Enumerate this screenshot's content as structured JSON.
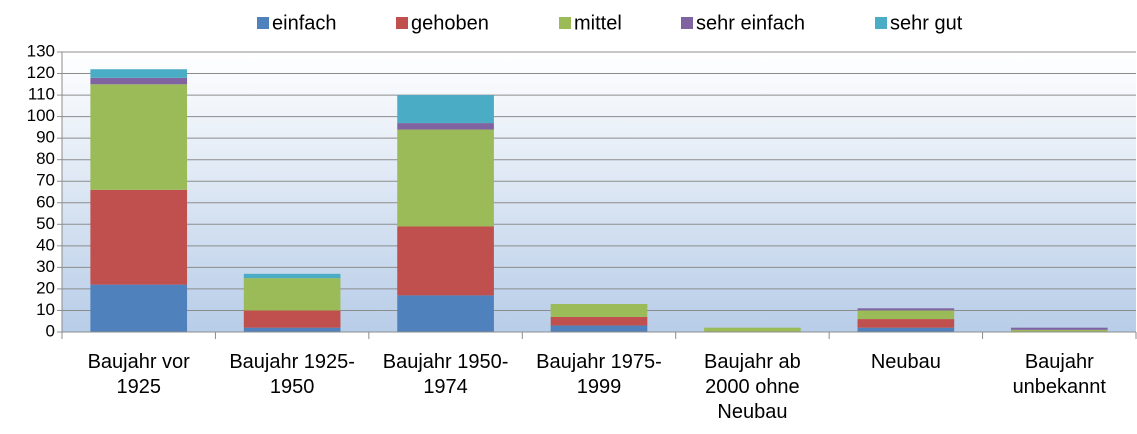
{
  "chart_data": {
    "type": "stacked_bar",
    "categories": [
      "Baujahr vor 1925",
      "Baujahr 1925-1950",
      "Baujahr 1950-1974",
      "Baujahr 1975-1999",
      "Baujahr ab 2000 ohne Neubau",
      "Neubau",
      "Baujahr unbekannt"
    ],
    "series": [
      {
        "name": "einfach",
        "color": "#4f81bd",
        "values": [
          22,
          2,
          17,
          3,
          0,
          2,
          0
        ]
      },
      {
        "name": "gehoben",
        "color": "#c0504d",
        "values": [
          44,
          8,
          32,
          4,
          0,
          4,
          0
        ]
      },
      {
        "name": "mittel",
        "color": "#9bbb59",
        "values": [
          49,
          15,
          45,
          6,
          2,
          4,
          1
        ]
      },
      {
        "name": "sehr einfach",
        "color": "#8064a2",
        "values": [
          3,
          0,
          3,
          0,
          0,
          1,
          1
        ]
      },
      {
        "name": "sehr gut",
        "color": "#4bacc6",
        "values": [
          4,
          2,
          13,
          0,
          0,
          0,
          0
        ]
      }
    ],
    "ylim": [
      0,
      130
    ],
    "yticks": [
      0,
      10,
      20,
      30,
      40,
      50,
      60,
      70,
      80,
      90,
      100,
      110,
      120,
      130
    ],
    "grid": true,
    "legend": "top"
  }
}
